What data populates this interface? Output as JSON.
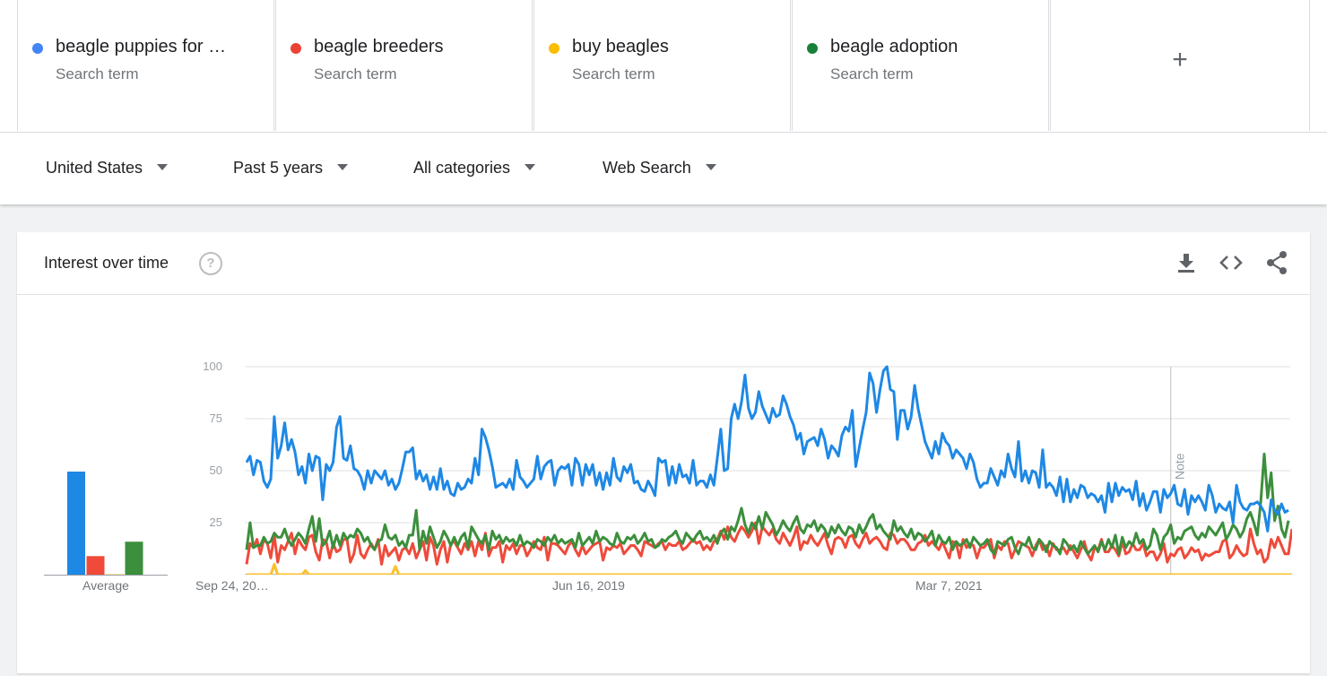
{
  "terms": [
    {
      "label": "beagle puppies for …",
      "sub": "Search term",
      "color": "#4285f4"
    },
    {
      "label": "beagle breeders",
      "sub": "Search term",
      "color": "#ea4335"
    },
    {
      "label": "buy beagles",
      "sub": "Search term",
      "color": "#fbbc04"
    },
    {
      "label": "beagle adoption",
      "sub": "Search term",
      "color": "#188038"
    }
  ],
  "add_label": "+",
  "filters": {
    "region": "United States",
    "time": "Past 5 years",
    "category": "All categories",
    "property": "Web Search"
  },
  "card": {
    "title": "Interest over time",
    "help": "?",
    "icons": [
      "download-icon",
      "embed-code-icon",
      "share-icon"
    ]
  },
  "chart_data": {
    "type": "line",
    "ylim": [
      0,
      100
    ],
    "yticks": [
      "100",
      "75",
      "50",
      "25"
    ],
    "xtick_labels": [
      "Sep 24, 20…",
      "Jun 16, 2019",
      "Mar 7, 2021"
    ],
    "note_label": "Note",
    "average_label": "Average",
    "averages": [
      50,
      9,
      0,
      16
    ],
    "series": [
      {
        "name": "beagle puppies for …",
        "color": "#1e88e5",
        "values": [
          54,
          57,
          48,
          55,
          54,
          45,
          42,
          46,
          76,
          56,
          62,
          73,
          60,
          65,
          59,
          48,
          52,
          44,
          58,
          50,
          57,
          56,
          36,
          53,
          50,
          54,
          71,
          76,
          56,
          55,
          62,
          51,
          50,
          47,
          41,
          50,
          44,
          50,
          48,
          46,
          50,
          43,
          46,
          41,
          44,
          51,
          59,
          59,
          61,
          46,
          50,
          45,
          48,
          41,
          47,
          41,
          51,
          41,
          45,
          39,
          38,
          44,
          41,
          42,
          46,
          44,
          56,
          48,
          70,
          66,
          60,
          52,
          42,
          43,
          44,
          42,
          46,
          41,
          55,
          47,
          45,
          42,
          44,
          46,
          57,
          46,
          52,
          54,
          55,
          43,
          50,
          52,
          51,
          53,
          43,
          56,
          53,
          43,
          53,
          48,
          53,
          43,
          49,
          41,
          49,
          43,
          56,
          47,
          45,
          52,
          49,
          53,
          44,
          45,
          41,
          40,
          45,
          42,
          38,
          56,
          54,
          55,
          43,
          52,
          44,
          53,
          47,
          48,
          44,
          55,
          43,
          45,
          45,
          42,
          48,
          43,
          56,
          70,
          50,
          51,
          75,
          82,
          75,
          83,
          96,
          80,
          75,
          78,
          88,
          81,
          77,
          73,
          80,
          76,
          77,
          86,
          82,
          76,
          72,
          65,
          68,
          58,
          64,
          65,
          66,
          62,
          70,
          65,
          56,
          62,
          60,
          57,
          67,
          71,
          69,
          79,
          52,
          61,
          70,
          78,
          97,
          92,
          78,
          89,
          98,
          100,
          89,
          88,
          65,
          79,
          79,
          70,
          76,
          91,
          80,
          72,
          64,
          60,
          56,
          64,
          58,
          68,
          64,
          62,
          56,
          60,
          58,
          56,
          51,
          58,
          54,
          46,
          42,
          44,
          44,
          51,
          47,
          43,
          50,
          47,
          58,
          51,
          47,
          64,
          45,
          50,
          44,
          50,
          49,
          42,
          60,
          42,
          44,
          42,
          38,
          47,
          35,
          46,
          35,
          41,
          37,
          43,
          42,
          37,
          39,
          38,
          35,
          38,
          30,
          44,
          35,
          44,
          38,
          42,
          40,
          41,
          36,
          45,
          33,
          39,
          31,
          35,
          40,
          40,
          30,
          41,
          37,
          39,
          43,
          34,
          33,
          41,
          29,
          38,
          35,
          38,
          35,
          31,
          43,
          38,
          30,
          34,
          32,
          31,
          35,
          25,
          43,
          35,
          32,
          31,
          34,
          34,
          35,
          33,
          30,
          21,
          36,
          31,
          29,
          34,
          30,
          31
        ]
      },
      {
        "name": "beagle breeders",
        "color": "#ef4a3a",
        "values": [
          5,
          15,
          13,
          17,
          10,
          17,
          15,
          8,
          19,
          6,
          14,
          12,
          16,
          20,
          10,
          17,
          14,
          12,
          18,
          19,
          11,
          7,
          17,
          16,
          8,
          15,
          11,
          12,
          17,
          17,
          6,
          10,
          19,
          10,
          8,
          12,
          15,
          12,
          17,
          5,
          14,
          9,
          11,
          13,
          7,
          12,
          13,
          10,
          15,
          8,
          12,
          16,
          7,
          18,
          14,
          5,
          12,
          16,
          6,
          15,
          16,
          13,
          10,
          15,
          12,
          16,
          9,
          16,
          12,
          20,
          9,
          13,
          13,
          16,
          6,
          14,
          12,
          15,
          10,
          14,
          14,
          9,
          12,
          16,
          13,
          12,
          18,
          7,
          15,
          15,
          14,
          12,
          10,
          14,
          16,
          12,
          9,
          14,
          10,
          12,
          14,
          15,
          16,
          7,
          13,
          12,
          14,
          13,
          15,
          10,
          12,
          14,
          14,
          12,
          9,
          16,
          15,
          14,
          13,
          15,
          16,
          12,
          15,
          14,
          14,
          16,
          12,
          13,
          15,
          17,
          15,
          16,
          12,
          14,
          12,
          16,
          17,
          21,
          17,
          23,
          18,
          16,
          20,
          23,
          21,
          18,
          21,
          25,
          15,
          23,
          21,
          19,
          22,
          17,
          15,
          20,
          17,
          14,
          18,
          23,
          12,
          16,
          15,
          19,
          16,
          14,
          17,
          20,
          14,
          10,
          17,
          18,
          17,
          13,
          18,
          19,
          15,
          13,
          17,
          20,
          15,
          17,
          18,
          16,
          13,
          12,
          20,
          19,
          15,
          17,
          17,
          15,
          12,
          12,
          15,
          16,
          19,
          14,
          16,
          14,
          12,
          16,
          12,
          8,
          16,
          15,
          8,
          17,
          13,
          15,
          14,
          8,
          13,
          13,
          15,
          17,
          8,
          14,
          12,
          16,
          15,
          8,
          12,
          16,
          15,
          14,
          13,
          9,
          14,
          17,
          12,
          14,
          9,
          15,
          12,
          12,
          13,
          10,
          14,
          11,
          8,
          12,
          16,
          10,
          7,
          13,
          12,
          17,
          11,
          11,
          14,
          12,
          9,
          16,
          10,
          11,
          15,
          12,
          12,
          15,
          9,
          11,
          11,
          7,
          10,
          15,
          6,
          10,
          9,
          12,
          13,
          8,
          10,
          13,
          11,
          12,
          7,
          10,
          9,
          10,
          11,
          11,
          16,
          17,
          8,
          10,
          14,
          11,
          9,
          10,
          22,
          15,
          10,
          12,
          6,
          8,
          17,
          13,
          18,
          14,
          10,
          10,
          22
        ]
      },
      {
        "name": "buy beagles",
        "color": "#fbc02d",
        "values": [
          0,
          0,
          0,
          0,
          0,
          0,
          0,
          0,
          5,
          0,
          0,
          0,
          0,
          0,
          0,
          0,
          0,
          2,
          0,
          0,
          0,
          0,
          0,
          0,
          0,
          0,
          0,
          0,
          0,
          0,
          0,
          0,
          0,
          0,
          0,
          0,
          0,
          0,
          0,
          0,
          0,
          0,
          0,
          4,
          0,
          0,
          0,
          0,
          0,
          0,
          0,
          0,
          0,
          0,
          0,
          0,
          0,
          0,
          0,
          0,
          0,
          0,
          0,
          0,
          0,
          0,
          0,
          0,
          0,
          0,
          0,
          0,
          0,
          0,
          0,
          0,
          0,
          0,
          0,
          0,
          0,
          0,
          0,
          0,
          0,
          0,
          0,
          0,
          0,
          0,
          0,
          0,
          0,
          0,
          0,
          0,
          0,
          0,
          0,
          0,
          0,
          0,
          0,
          0,
          0,
          0,
          0,
          0,
          0,
          0,
          0,
          0,
          0,
          0,
          0,
          0,
          0,
          0,
          0,
          0,
          0,
          0,
          0,
          0,
          0,
          0,
          0,
          0,
          0,
          0,
          0,
          0,
          0,
          0,
          0,
          0,
          0,
          0,
          0,
          0,
          0,
          0,
          0,
          0,
          0,
          0,
          0,
          0,
          0,
          0,
          0,
          0,
          0,
          0,
          0,
          0,
          0,
          0,
          0,
          0,
          0,
          0,
          0,
          0,
          0,
          0,
          0,
          0,
          0,
          0,
          0,
          0,
          0,
          0,
          0,
          0,
          0,
          0,
          0,
          0,
          0,
          0,
          0,
          0,
          0,
          0,
          0,
          0,
          0,
          0,
          0,
          0,
          0,
          0,
          0,
          0,
          0,
          0,
          0,
          0,
          0,
          0,
          0,
          0,
          0,
          0,
          0,
          0,
          0,
          0,
          0,
          0,
          0,
          0,
          0,
          0,
          0,
          0,
          0,
          0,
          0,
          0,
          0,
          0,
          0,
          0,
          0,
          0,
          0,
          0,
          0,
          0,
          0,
          0,
          0,
          0,
          0,
          0,
          0,
          0,
          0,
          0,
          0,
          0,
          0,
          0,
          0,
          0,
          0,
          0,
          0,
          0,
          0,
          0,
          0,
          0,
          0,
          0,
          0,
          0,
          0,
          0,
          0,
          0,
          0,
          0,
          0,
          0,
          0,
          0,
          0,
          0,
          0,
          0,
          0,
          0,
          0,
          0,
          0,
          0,
          0,
          0,
          0,
          0,
          0,
          0,
          0,
          0,
          0,
          0,
          0,
          0,
          0,
          0,
          0,
          0,
          0,
          0,
          0,
          0,
          0,
          0,
          0,
          0,
          0,
          0,
          0,
          0,
          0,
          0,
          0,
          0,
          0,
          0,
          0,
          0,
          0
        ]
      },
      {
        "name": "beagle adoption",
        "color": "#3c8f3c",
        "values": [
          12,
          25,
          13,
          14,
          14,
          18,
          15,
          16,
          20,
          18,
          18,
          22,
          17,
          14,
          17,
          20,
          18,
          15,
          22,
          28,
          16,
          27,
          14,
          16,
          21,
          13,
          19,
          14,
          20,
          17,
          19,
          18,
          22,
          20,
          16,
          18,
          14,
          12,
          16,
          17,
          24,
          18,
          17,
          19,
          14,
          16,
          13,
          19,
          19,
          31,
          12,
          21,
          15,
          23,
          18,
          13,
          16,
          21,
          18,
          14,
          18,
          14,
          18,
          20,
          13,
          23,
          20,
          17,
          15,
          19,
          12,
          21,
          17,
          19,
          15,
          18,
          16,
          17,
          14,
          19,
          14,
          16,
          15,
          13,
          17,
          16,
          14,
          18,
          16,
          19,
          15,
          17,
          15,
          16,
          17,
          13,
          20,
          14,
          16,
          18,
          15,
          21,
          16,
          18,
          17,
          15,
          14,
          20,
          16,
          15,
          18,
          17,
          19,
          15,
          17,
          20,
          16,
          17,
          13,
          14,
          17,
          16,
          18,
          19,
          21,
          17,
          15,
          20,
          18,
          16,
          19,
          21,
          17,
          18,
          16,
          19,
          15,
          20,
          22,
          17,
          23,
          21,
          26,
          32,
          24,
          20,
          25,
          22,
          28,
          22,
          30,
          27,
          24,
          19,
          22,
          26,
          23,
          21,
          25,
          28,
          22,
          20,
          24,
          23,
          26,
          21,
          24,
          22,
          18,
          23,
          20,
          24,
          21,
          19,
          23,
          22,
          18,
          24,
          20,
          23,
          27,
          29,
          22,
          24,
          21,
          19,
          17,
          26,
          21,
          23,
          20,
          18,
          22,
          17,
          20,
          19,
          16,
          18,
          21,
          14,
          19,
          16,
          15,
          18,
          12,
          16,
          14,
          15,
          17,
          13,
          18,
          16,
          14,
          15,
          17,
          12,
          10,
          16,
          15,
          14,
          17,
          18,
          13,
          10,
          15,
          14,
          18,
          13,
          12,
          17,
          15,
          11,
          16,
          14,
          13,
          10,
          17,
          15,
          12,
          14,
          11,
          16,
          13,
          10,
          12,
          14,
          11,
          16,
          12,
          17,
          13,
          19,
          10,
          18,
          13,
          16,
          14,
          20,
          15,
          17,
          12,
          14,
          22,
          19,
          12,
          18,
          20,
          24,
          15,
          18,
          17,
          21,
          22,
          23,
          19,
          17,
          20,
          18,
          23,
          21,
          19,
          22,
          25,
          17,
          20,
          24,
          22,
          18,
          21,
          27,
          30,
          25,
          19,
          35,
          58,
          37,
          49,
          26,
          33,
          22,
          18,
          26
        ]
      }
    ]
  }
}
